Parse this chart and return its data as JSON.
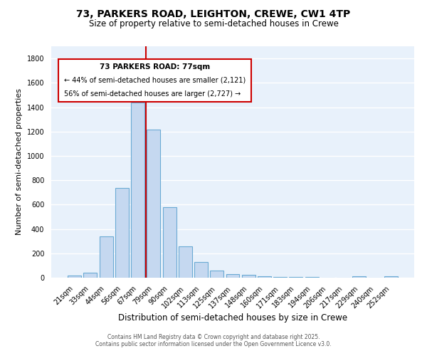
{
  "title1": "73, PARKERS ROAD, LEIGHTON, CREWE, CW1 4TP",
  "title2": "Size of property relative to semi-detached houses in Crewe",
  "xlabel": "Distribution of semi-detached houses by size in Crewe",
  "ylabel": "Number of semi-detached properties",
  "categories": [
    "21sqm",
    "33sqm",
    "44sqm",
    "56sqm",
    "67sqm",
    "79sqm",
    "90sqm",
    "102sqm",
    "113sqm",
    "125sqm",
    "137sqm",
    "148sqm",
    "160sqm",
    "171sqm",
    "183sqm",
    "194sqm",
    "206sqm",
    "217sqm",
    "229sqm",
    "240sqm",
    "252sqm"
  ],
  "values": [
    15,
    40,
    340,
    735,
    1440,
    1215,
    580,
    255,
    130,
    60,
    30,
    25,
    10,
    8,
    5,
    3,
    2,
    1,
    10,
    1,
    10
  ],
  "bar_color": "#C5D8F0",
  "bar_edge_color": "#6AAAD4",
  "bg_color": "#E8F1FB",
  "grid_color": "#FFFFFF",
  "vline_color": "#CC0000",
  "annotation_title": "73 PARKERS ROAD: 77sqm",
  "annotation_line1": "← 44% of semi-detached houses are smaller (2,121)",
  "annotation_line2": "56% of semi-detached houses are larger (2,727) →",
  "annotation_box_color": "#CC0000",
  "footer1": "Contains HM Land Registry data © Crown copyright and database right 2025.",
  "footer2": "Contains public sector information licensed under the Open Government Licence v3.0.",
  "ylim": [
    0,
    1900
  ],
  "yticks": [
    0,
    200,
    400,
    600,
    800,
    1000,
    1200,
    1400,
    1600,
    1800
  ]
}
